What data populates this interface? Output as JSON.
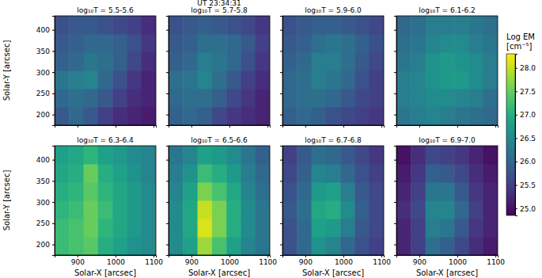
{
  "chart_data": {
    "type": "heatmap",
    "title": "UT 23:34:31",
    "xlabel": "Solar-X [arcsec]",
    "ylabel": "Solar-Y [arcsec]",
    "xlim": [
      840,
      1106
    ],
    "ylim": [
      175,
      433
    ],
    "xticks": [
      900,
      1000,
      1100
    ],
    "yticks": [
      200,
      250,
      300,
      350,
      400
    ],
    "x": [
      859,
      897,
      935,
      973,
      1011,
      1049,
      1087
    ],
    "y": [
      196.5,
      239.5,
      282.5,
      325.5,
      368.5,
      411.5
    ],
    "colorbar_label": [
      "Log EM",
      "[cm⁻⁵]"
    ],
    "colorbar_range": [
      24.85,
      28.3
    ],
    "colorbar_ticks": [
      {
        "value": 25,
        "label": "25.0"
      },
      {
        "value": 25.5,
        "label": "25.5"
      },
      {
        "value": 26,
        "label": "26.0"
      },
      {
        "value": 26.5,
        "label": "26.5"
      },
      {
        "value": 27,
        "label": "27.0"
      },
      {
        "value": 27.5,
        "label": "27.5"
      },
      {
        "value": 28,
        "label": "28.0"
      }
    ],
    "panels": [
      {
        "title": "log₁₀T = 5.5-5.6",
        "cells": [
          [
            25.8,
            26.0,
            25.8,
            25.5,
            25.3,
            25.2,
            25.1
          ],
          [
            26.0,
            26.1,
            26.0,
            25.8,
            25.5,
            25.3,
            25.2
          ],
          [
            26.2,
            26.3,
            26.4,
            26.0,
            25.7,
            25.4,
            25.2
          ],
          [
            25.9,
            26.0,
            26.2,
            26.1,
            25.9,
            25.6,
            25.3
          ],
          [
            25.8,
            25.9,
            26.0,
            26.0,
            25.9,
            25.7,
            25.4
          ],
          [
            25.7,
            25.8,
            25.8,
            25.7,
            25.6,
            25.5,
            25.3
          ]
        ]
      },
      {
        "title": "log₁₀T = 5.7-5.8",
        "cells": [
          [
            25.9,
            26.0,
            25.9,
            25.6,
            25.4,
            25.3,
            25.2
          ],
          [
            26.0,
            26.1,
            26.1,
            25.9,
            25.6,
            25.4,
            25.2
          ],
          [
            26.1,
            26.2,
            26.4,
            26.1,
            25.8,
            25.5,
            25.3
          ],
          [
            25.9,
            26.0,
            26.3,
            26.2,
            26.0,
            25.7,
            25.4
          ],
          [
            25.8,
            25.9,
            26.1,
            26.1,
            26.0,
            25.8,
            25.5
          ],
          [
            25.7,
            25.8,
            25.9,
            25.8,
            25.7,
            25.6,
            25.4
          ]
        ]
      },
      {
        "title": "log₁₀T = 5.9-6.0",
        "cells": [
          [
            25.9,
            26.0,
            25.9,
            25.7,
            25.6,
            25.5,
            25.4
          ],
          [
            26.0,
            26.1,
            26.1,
            26.0,
            25.8,
            25.6,
            25.5
          ],
          [
            26.0,
            26.1,
            26.3,
            26.2,
            26.0,
            25.7,
            25.5
          ],
          [
            25.9,
            26.0,
            26.3,
            26.3,
            26.1,
            25.8,
            25.6
          ],
          [
            25.8,
            25.9,
            26.1,
            26.2,
            26.1,
            25.9,
            25.7
          ],
          [
            25.7,
            25.8,
            25.9,
            25.9,
            25.8,
            25.7,
            25.6
          ]
        ]
      },
      {
        "title": "log₁₀T = 6.1-6.2",
        "cells": [
          [
            26.2,
            26.3,
            26.4,
            26.3,
            26.2,
            26.1,
            26.0
          ],
          [
            26.3,
            26.4,
            26.5,
            26.5,
            26.4,
            26.3,
            26.1
          ],
          [
            26.3,
            26.4,
            26.6,
            26.7,
            26.7,
            26.5,
            26.3
          ],
          [
            26.2,
            26.3,
            26.6,
            26.7,
            26.6,
            26.5,
            26.3
          ],
          [
            26.1,
            26.2,
            26.4,
            26.5,
            26.5,
            26.3,
            26.2
          ],
          [
            26.0,
            26.1,
            26.3,
            26.3,
            26.3,
            26.2,
            26.1
          ]
        ]
      },
      {
        "title": "log₁₀T = 6.3-6.4",
        "cells": [
          [
            27.2,
            27.3,
            27.4,
            27.0,
            26.8,
            26.6,
            26.5
          ],
          [
            27.2,
            27.3,
            27.5,
            27.1,
            26.9,
            26.7,
            26.5
          ],
          [
            27.1,
            27.2,
            27.5,
            27.2,
            26.9,
            26.7,
            26.5
          ],
          [
            27.0,
            27.1,
            27.4,
            27.1,
            26.9,
            26.7,
            26.5
          ],
          [
            26.9,
            27.0,
            27.5,
            27.0,
            26.8,
            26.6,
            26.4
          ],
          [
            26.8,
            26.9,
            27.1,
            26.8,
            26.7,
            26.5,
            26.4
          ]
        ]
      },
      {
        "title": "log₁₀T = 6.5-6.6",
        "cells": [
          [
            26.5,
            26.8,
            27.8,
            27.3,
            26.8,
            26.4,
            26.2
          ],
          [
            26.5,
            26.9,
            28.1,
            27.6,
            27.0,
            26.5,
            26.2
          ],
          [
            26.5,
            26.9,
            28.0,
            27.6,
            27.0,
            26.5,
            26.2
          ],
          [
            26.4,
            26.8,
            27.6,
            27.3,
            26.9,
            26.4,
            26.1
          ],
          [
            26.3,
            26.6,
            27.2,
            27.0,
            26.7,
            26.3,
            26.0
          ],
          [
            26.2,
            26.4,
            26.8,
            26.7,
            26.5,
            26.2,
            25.9
          ]
        ]
      },
      {
        "title": "log₁₀T = 6.7-6.8",
        "cells": [
          [
            25.7,
            26.0,
            26.6,
            26.4,
            26.0,
            25.7,
            25.5
          ],
          [
            25.7,
            26.0,
            26.8,
            26.7,
            26.3,
            25.8,
            25.6
          ],
          [
            25.8,
            26.1,
            26.9,
            27.0,
            26.5,
            25.9,
            25.6
          ],
          [
            25.7,
            26.0,
            26.7,
            26.8,
            26.3,
            25.8,
            25.6
          ],
          [
            25.6,
            25.9,
            26.4,
            26.3,
            26.0,
            25.7,
            25.5
          ],
          [
            25.5,
            25.8,
            26.1,
            26.0,
            25.8,
            25.6,
            25.4
          ]
        ]
      },
      {
        "title": "log₁₀T = 6.9-7.0",
        "cells": [
          [
            25.2,
            25.5,
            26.1,
            25.9,
            25.6,
            25.3,
            25.1
          ],
          [
            25.2,
            25.5,
            26.3,
            26.2,
            25.8,
            25.4,
            25.2
          ],
          [
            25.3,
            25.6,
            26.4,
            26.4,
            26.0,
            25.5,
            25.2
          ],
          [
            25.2,
            25.5,
            26.2,
            26.2,
            25.8,
            25.4,
            25.2
          ],
          [
            25.1,
            25.4,
            25.9,
            25.8,
            25.6,
            25.3,
            25.1
          ],
          [
            25.0,
            25.3,
            25.6,
            25.5,
            25.4,
            25.2,
            25.0
          ]
        ]
      }
    ]
  }
}
